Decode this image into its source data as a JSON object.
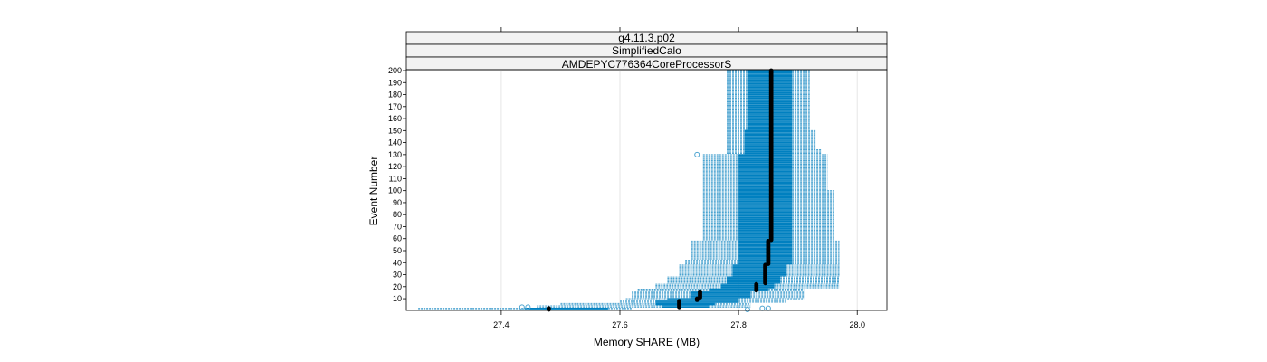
{
  "chart_data": {
    "type": "bwplot",
    "strips": [
      "g4.11.3.p02",
      "SimplifiedCalo",
      "AMDEPYC776364CoreProcessorS"
    ],
    "xlabel": "Memory SHARE (MB)",
    "ylabel": "Event Number",
    "xlim": [
      27.24,
      28.05
    ],
    "ylim": [
      0,
      200
    ],
    "x_ticks": [
      "27.4",
      "27.6",
      "27.8",
      "28.0"
    ],
    "y_ticks": [
      "10",
      "20",
      "30",
      "40",
      "50",
      "60",
      "70",
      "80",
      "90",
      "100",
      "110",
      "120",
      "130",
      "140",
      "150",
      "160",
      "170",
      "180",
      "190",
      "200"
    ],
    "colors": {
      "box": "#0080c0",
      "whisker": "#4ba3d0",
      "median": "#000000",
      "outlier": "#4ba3d0",
      "grid": "#e6e6e6"
    },
    "segments": [
      {
        "events": [
          1,
          2
        ],
        "wlo": 27.26,
        "q1": 27.44,
        "med": 27.48,
        "q3": 27.58,
        "whi": 27.62
      },
      {
        "events": [
          3,
          4
        ],
        "wlo": 27.46,
        "q1": 27.67,
        "med": 27.7,
        "q3": 27.75,
        "whi": 27.82
      },
      {
        "events": [
          5,
          6
        ],
        "wlo": 27.5,
        "q1": 27.66,
        "med": 27.7,
        "q3": 27.76,
        "whi": 27.82
      },
      {
        "events": [
          7,
          8
        ],
        "wlo": 27.6,
        "q1": 27.66,
        "med": 27.7,
        "q3": 27.8,
        "whi": 27.88
      },
      {
        "events": [
          9,
          10
        ],
        "wlo": 27.61,
        "q1": 27.68,
        "med": 27.73,
        "q3": 27.8,
        "whi": 27.91
      },
      {
        "events": [
          11,
          16
        ],
        "wlo": 27.62,
        "q1": 27.72,
        "med": 27.735,
        "q3": 27.82,
        "whi": 27.91
      },
      {
        "events": [
          17,
          18
        ],
        "wlo": 27.63,
        "q1": 27.75,
        "med": 27.83,
        "q3": 27.85,
        "whi": 27.91
      },
      {
        "events": [
          19,
          22
        ],
        "wlo": 27.66,
        "q1": 27.77,
        "med": 27.83,
        "q3": 27.86,
        "whi": 27.97
      },
      {
        "events": [
          23,
          28
        ],
        "wlo": 27.68,
        "q1": 27.78,
        "med": 27.845,
        "q3": 27.87,
        "whi": 27.97
      },
      {
        "events": [
          29,
          38
        ],
        "wlo": 27.7,
        "q1": 27.79,
        "med": 27.845,
        "q3": 27.88,
        "whi": 27.97
      },
      {
        "events": [
          39,
          42
        ],
        "wlo": 27.71,
        "q1": 27.8,
        "med": 27.85,
        "q3": 27.89,
        "whi": 27.97
      },
      {
        "events": [
          43,
          58
        ],
        "wlo": 27.72,
        "q1": 27.8,
        "med": 27.85,
        "q3": 27.89,
        "whi": 27.97
      },
      {
        "events": [
          59,
          80
        ],
        "wlo": 27.74,
        "q1": 27.8,
        "med": 27.855,
        "q3": 27.89,
        "whi": 27.96
      },
      {
        "events": [
          81,
          100
        ],
        "wlo": 27.74,
        "q1": 27.8,
        "med": 27.855,
        "q3": 27.89,
        "whi": 27.96
      },
      {
        "events": [
          101,
          120
        ],
        "wlo": 27.74,
        "q1": 27.8,
        "med": 27.855,
        "q3": 27.89,
        "whi": 27.95
      },
      {
        "events": [
          121,
          130
        ],
        "wlo": 27.74,
        "q1": 27.8,
        "med": 27.855,
        "q3": 27.89,
        "whi": 27.95
      },
      {
        "events": [
          131,
          134
        ],
        "wlo": 27.78,
        "q1": 27.81,
        "med": 27.855,
        "q3": 27.89,
        "whi": 27.94
      },
      {
        "events": [
          135,
          150
        ],
        "wlo": 27.78,
        "q1": 27.81,
        "med": 27.855,
        "q3": 27.89,
        "whi": 27.93
      },
      {
        "events": [
          151,
          200
        ],
        "wlo": 27.78,
        "q1": 27.815,
        "med": 27.855,
        "q3": 27.89,
        "whi": 27.92
      }
    ],
    "outliers": [
      {
        "x": 27.435,
        "y": 3
      },
      {
        "x": 27.445,
        "y": 3
      },
      {
        "x": 27.815,
        "y": 1
      },
      {
        "x": 27.84,
        "y": 2
      },
      {
        "x": 27.85,
        "y": 2
      },
      {
        "x": 27.73,
        "y": 130
      }
    ]
  }
}
